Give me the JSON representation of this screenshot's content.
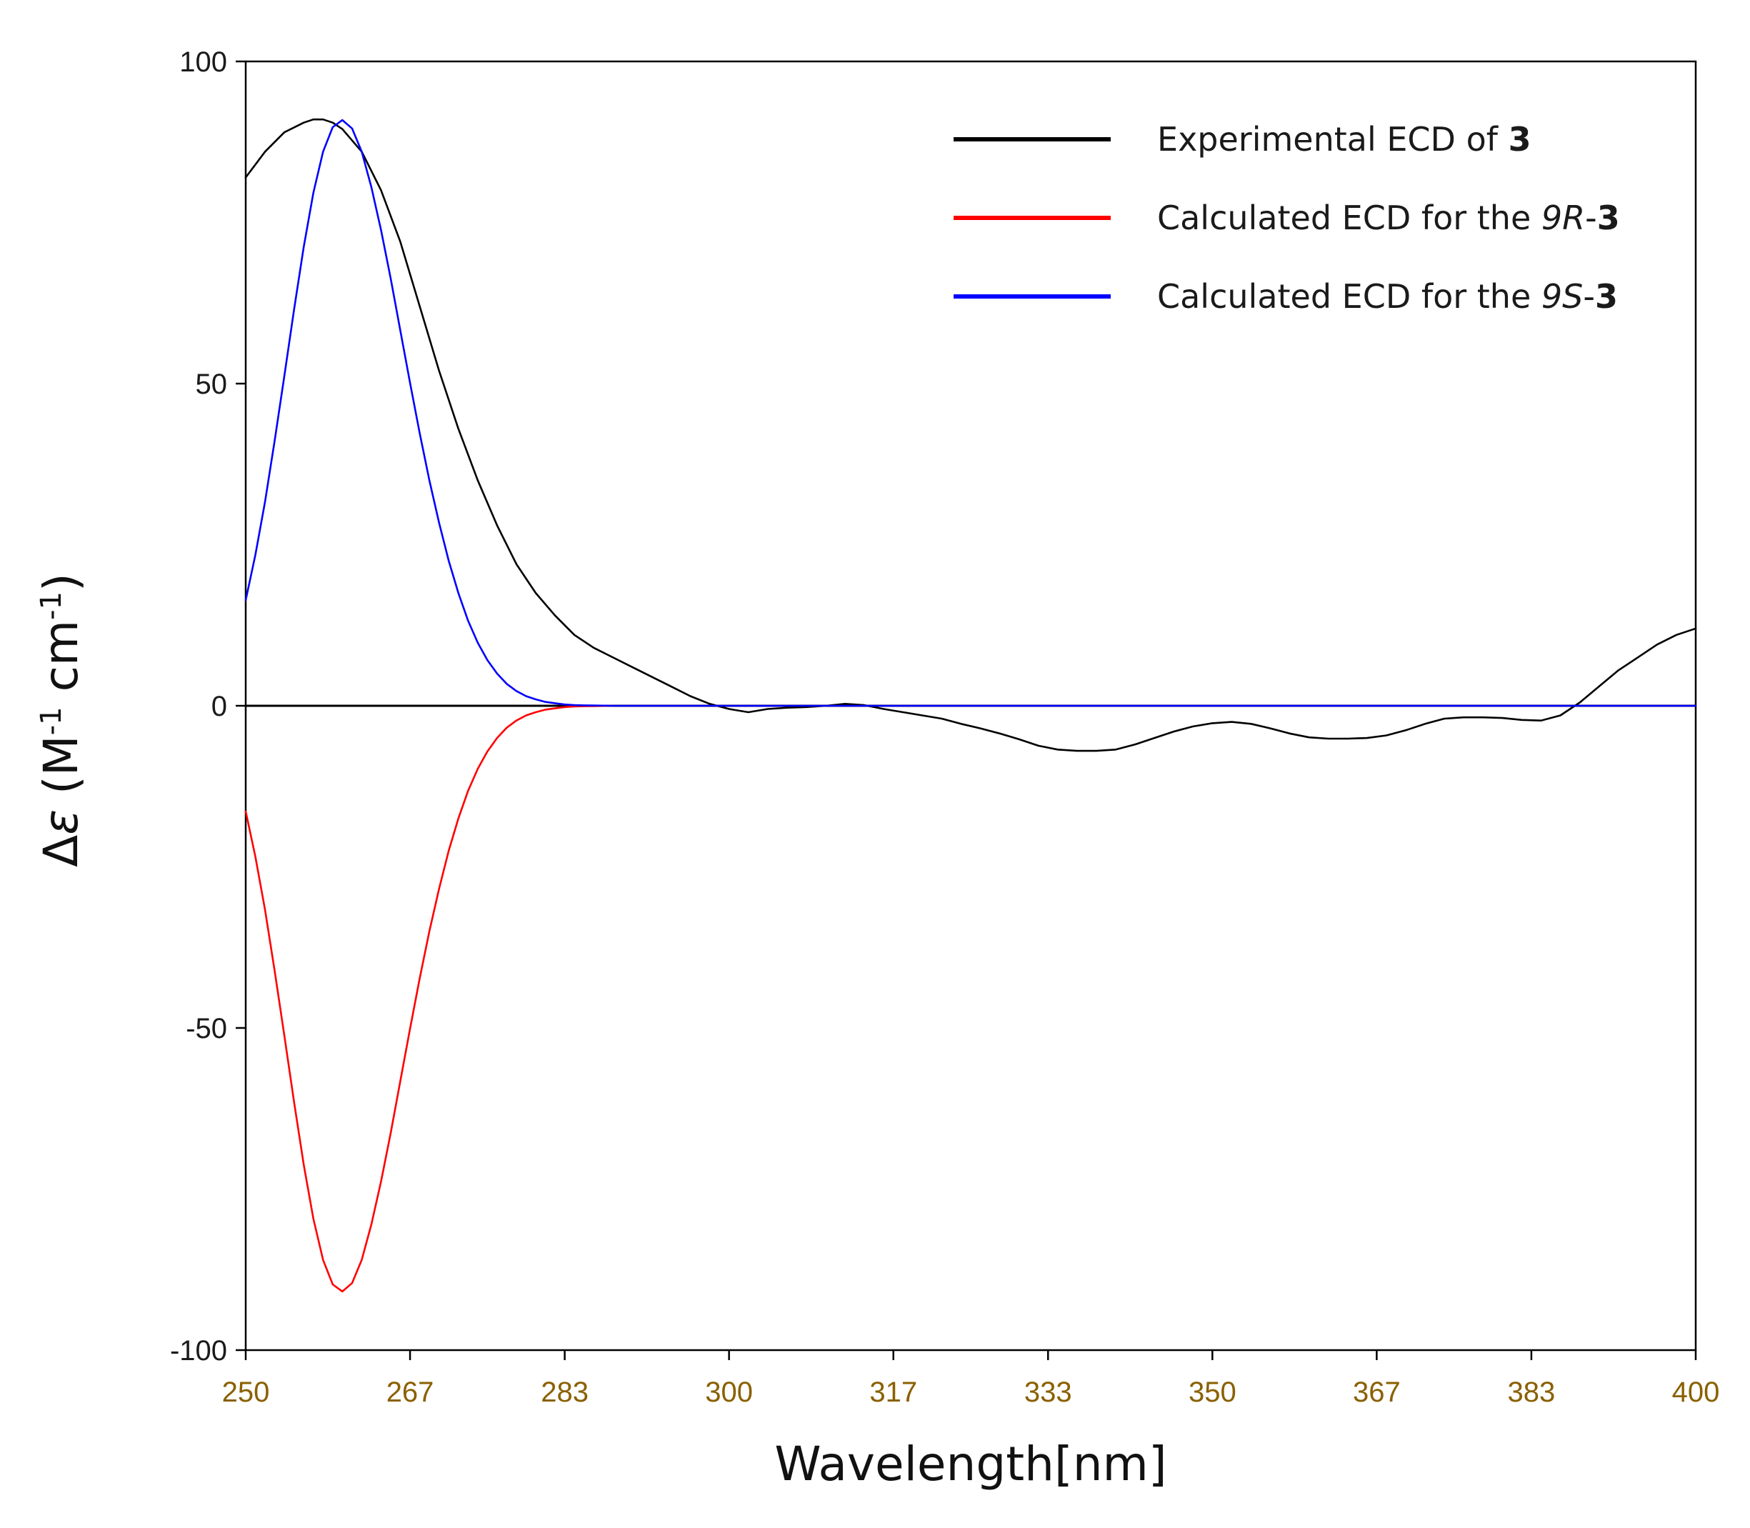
{
  "chart_data": {
    "type": "line",
    "xlabel": "Wavelength[nm]",
    "ylabel_prefix": "Δ",
    "ylabel_var": "ε",
    "ylabel_open": " (M",
    "ylabel_sup1": "-1",
    "ylabel_mid": " cm",
    "ylabel_sup2": "-1",
    "ylabel_close": ")",
    "xlim": [
      250,
      400
    ],
    "ylim": [
      -100,
      100
    ],
    "x_ticks": [
      250,
      267,
      283,
      300,
      317,
      333,
      350,
      367,
      383,
      400
    ],
    "x_tick_labels": [
      "250",
      "267",
      "283",
      "300",
      "317",
      "333",
      "350",
      "367",
      "383",
      "400"
    ],
    "y_ticks": [
      100,
      50,
      0,
      -50,
      -100
    ],
    "y_tick_labels": [
      "100",
      "50",
      "0",
      "-50",
      "-100"
    ],
    "grid": false,
    "legend_position": "top-right",
    "legend": [
      {
        "color": "#000000",
        "plain": "Experimental ECD of ",
        "italic": "",
        "dash": "",
        "bold": "3"
      },
      {
        "color": "#ff0000",
        "plain": "Calculated ECD for the ",
        "italic": "9R",
        "dash": "-",
        "bold": "3"
      },
      {
        "color": "#0000ff",
        "plain": "Calculated ECD for the ",
        "italic": "9S",
        "dash": "-",
        "bold": "3"
      }
    ],
    "series": [
      {
        "color": "#000000",
        "x": [
          250,
          252,
          254,
          256,
          257,
          258,
          259,
          260,
          262,
          264,
          266,
          268,
          270,
          272,
          274,
          276,
          278,
          280,
          282,
          284,
          286,
          288,
          290,
          292,
          294,
          296,
          298,
          300,
          302,
          304,
          306,
          308,
          310,
          312,
          314,
          316,
          318,
          320,
          322,
          324,
          326,
          328,
          330,
          332,
          334,
          336,
          338,
          340,
          342,
          344,
          346,
          348,
          350,
          352,
          354,
          356,
          358,
          360,
          362,
          364,
          366,
          368,
          370,
          372,
          374,
          376,
          378,
          380,
          382,
          384,
          386,
          388,
          390,
          392,
          394,
          396,
          398,
          400
        ],
        "y": [
          82,
          86,
          89,
          90.5,
          91,
          91,
          90.5,
          89.5,
          86,
          80,
          72,
          62,
          52,
          43,
          35,
          28,
          22,
          17.5,
          14,
          11,
          9,
          7.5,
          6,
          4.5,
          3,
          1.5,
          0.3,
          -0.5,
          -1,
          -0.5,
          -0.3,
          -0.2,
          0,
          0.3,
          0.1,
          -0.5,
          -1,
          -1.5,
          -2,
          -2.8,
          -3.5,
          -4.3,
          -5.2,
          -6.2,
          -6.8,
          -7,
          -7,
          -6.8,
          -6,
          -5,
          -4,
          -3.2,
          -2.7,
          -2.5,
          -2.8,
          -3.5,
          -4.3,
          -4.9,
          -5.1,
          -5.1,
          -5,
          -4.6,
          -3.8,
          -2.8,
          -2,
          -1.8,
          -1.8,
          -1.9,
          -2.2,
          -2.3,
          -1.5,
          0.5,
          3,
          5.5,
          7.5,
          9.5,
          11,
          12
        ]
      },
      {
        "color": "#ff0000",
        "x": [
          250,
          251,
          252,
          253,
          254,
          255,
          256,
          257,
          258,
          259,
          260,
          261,
          262,
          263,
          264,
          265,
          266,
          267,
          268,
          269,
          270,
          271,
          272,
          273,
          274,
          275,
          276,
          277,
          278,
          279,
          280,
          281,
          282,
          283,
          284,
          285,
          286,
          287,
          288
        ],
        "y": [
          -16.4,
          -23.4,
          -31.7,
          -41.2,
          -51.2,
          -61.5,
          -71.2,
          -79.6,
          -86.0,
          -89.8,
          -90.9,
          -89.6,
          -86.0,
          -80.5,
          -73.8,
          -66.3,
          -58.2,
          -50.1,
          -42.3,
          -35.0,
          -28.4,
          -22.5,
          -17.5,
          -13.2,
          -9.8,
          -7.1,
          -5.0,
          -3.4,
          -2.3,
          -1.5,
          -1.0,
          -0.6,
          -0.4,
          -0.2,
          -0.1,
          -0.07,
          -0.04,
          -0.02,
          0
        ]
      },
      {
        "color": "#0000ff",
        "x": [
          250,
          251,
          252,
          253,
          254,
          255,
          256,
          257,
          258,
          259,
          260,
          261,
          262,
          263,
          264,
          265,
          266,
          267,
          268,
          269,
          270,
          271,
          272,
          273,
          274,
          275,
          276,
          277,
          278,
          279,
          280,
          281,
          282,
          283,
          284,
          285,
          286,
          287,
          288,
          290,
          300,
          320,
          350,
          380,
          400
        ],
        "y": [
          16.4,
          23.4,
          31.7,
          41.2,
          51.2,
          61.5,
          71.2,
          79.6,
          86.0,
          89.8,
          90.9,
          89.6,
          86.0,
          80.5,
          73.8,
          66.3,
          58.2,
          50.1,
          42.3,
          35.0,
          28.4,
          22.5,
          17.5,
          13.2,
          9.8,
          7.1,
          5.0,
          3.4,
          2.3,
          1.5,
          1.0,
          0.6,
          0.4,
          0.2,
          0.1,
          0.07,
          0.04,
          0.02,
          0,
          0,
          0,
          0,
          0,
          0,
          0
        ]
      }
    ]
  }
}
